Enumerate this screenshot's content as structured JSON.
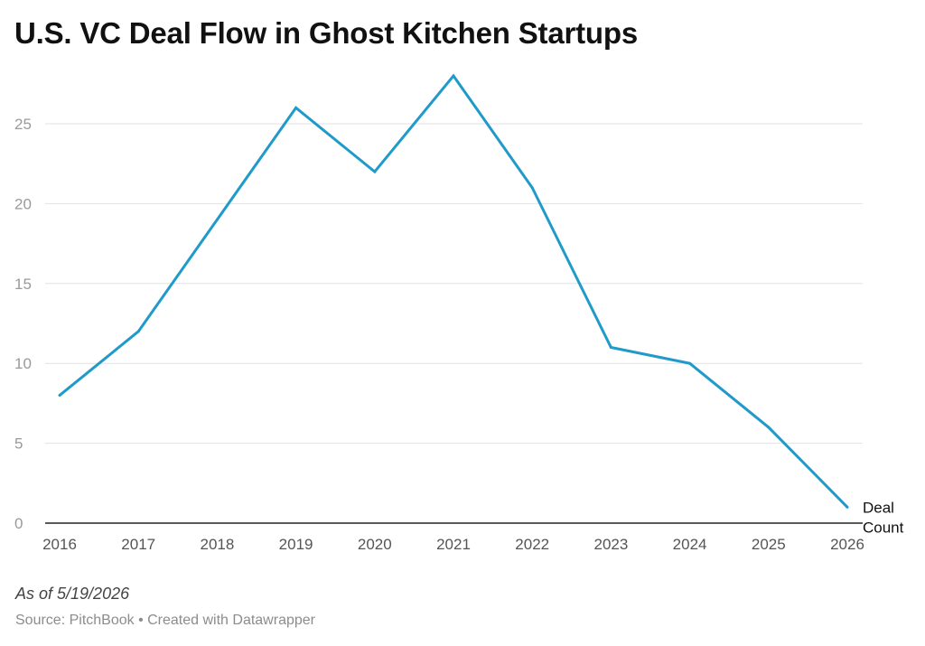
{
  "title": "U.S. VC Deal Flow in Ghost Kitchen Startups",
  "note": "As of 5/19/2026",
  "source": "Source: PitchBook • Created with Datawrapper",
  "colors": {
    "line": "#1f9ac9",
    "grid": "#e2e2e2",
    "baseline": "#222222"
  },
  "chart_data": {
    "type": "line",
    "x": [
      "2016",
      "2017",
      "2018",
      "2019",
      "2020",
      "2021",
      "2022",
      "2023",
      "2024",
      "2025",
      "2026"
    ],
    "series": [
      {
        "name": "Deal Count",
        "values": [
          8,
          12,
          19,
          26,
          22,
          28,
          21,
          11,
          10,
          6,
          1
        ]
      }
    ],
    "y_ticks": [
      0,
      5,
      10,
      15,
      20,
      25
    ],
    "ylim": [
      0,
      28
    ],
    "grid": true,
    "legend": "direct label at end of line"
  }
}
